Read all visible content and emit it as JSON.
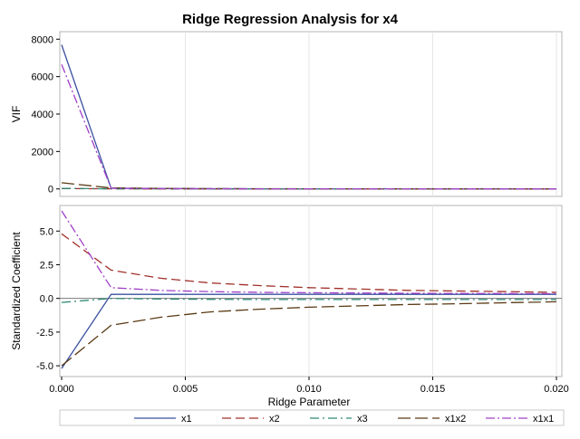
{
  "chart_data": {
    "type": "line",
    "title": "Ridge Regression Analysis for x4",
    "xlabel": "Ridge Parameter",
    "xlim": [
      0,
      0.02
    ],
    "x_ticks": [
      "0.000",
      "0.005",
      "0.010",
      "0.015",
      "0.020"
    ],
    "x": [
      0.0,
      0.002,
      0.004,
      0.006,
      0.008,
      0.01,
      0.012,
      0.014,
      0.016,
      0.018,
      0.02
    ],
    "grid": true,
    "legend_placement": "bottom",
    "panels": [
      {
        "ylabel": "VIF",
        "ylim": [
          -400,
          8400
        ],
        "y_ticks": [
          "0",
          "2000",
          "4000",
          "6000",
          "8000"
        ],
        "series": [
          {
            "name": "x1",
            "values": [
              7700,
              40,
              20,
              12,
              8,
              6,
              5,
              4,
              4,
              3,
              3
            ]
          },
          {
            "name": "x2",
            "values": [
              20,
              5,
              3,
              2,
              2,
              2,
              1,
              1,
              1,
              1,
              1
            ]
          },
          {
            "name": "x3",
            "values": [
              30,
              8,
              4,
              3,
              2,
              2,
              2,
              1,
              1,
              1,
              1
            ]
          },
          {
            "name": "x1x2",
            "values": [
              330,
              55,
              25,
              15,
              10,
              8,
              6,
              5,
              4,
              4,
              3
            ]
          },
          {
            "name": "x1x1",
            "values": [
              6650,
              35,
              18,
              10,
              7,
              5,
              4,
              4,
              3,
              3,
              3
            ]
          }
        ]
      },
      {
        "ylabel": "Standardized Coefficient",
        "ylim": [
          -5.8,
          6.9
        ],
        "y_ticks": [
          "-5.0",
          "-2.5",
          "0.0",
          "2.5",
          "5.0"
        ],
        "series": [
          {
            "name": "x1",
            "values": [
              -5.2,
              0.3,
              0.3,
              0.3,
              0.3,
              0.3,
              0.3,
              0.3,
              0.3,
              0.3,
              0.3
            ]
          },
          {
            "name": "x2",
            "values": [
              4.8,
              2.1,
              1.5,
              1.15,
              0.95,
              0.8,
              0.7,
              0.6,
              0.55,
              0.5,
              0.45
            ]
          },
          {
            "name": "x3",
            "values": [
              -0.3,
              0.0,
              -0.05,
              -0.07,
              -0.08,
              -0.08,
              -0.08,
              -0.08,
              -0.08,
              -0.08,
              -0.08
            ]
          },
          {
            "name": "x1x2",
            "values": [
              -5.0,
              -2.0,
              -1.4,
              -1.0,
              -0.8,
              -0.65,
              -0.55,
              -0.45,
              -0.4,
              -0.32,
              -0.25
            ]
          },
          {
            "name": "x1x1",
            "values": [
              6.5,
              0.8,
              0.6,
              0.5,
              0.45,
              0.42,
              0.4,
              0.38,
              0.37,
              0.36,
              0.35
            ]
          }
        ]
      }
    ],
    "styles": [
      {
        "name": "x1",
        "color": "#3a50a0",
        "dash": ""
      },
      {
        "name": "x2",
        "color": "#a0302a",
        "dash": "10,5"
      },
      {
        "name": "x3",
        "color": "#2e8a78",
        "dash": "10,4,2,4"
      },
      {
        "name": "x1x2",
        "color": "#5a3a14",
        "dash": "14,5"
      },
      {
        "name": "x1x1",
        "color": "#a040c8",
        "dash": "10,3,2,3"
      }
    ]
  }
}
